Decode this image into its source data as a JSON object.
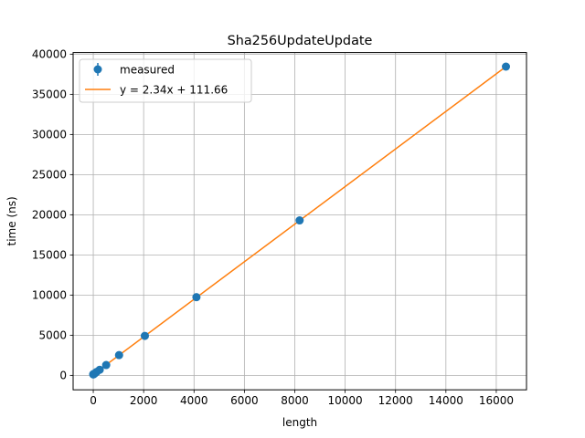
{
  "chart_data": {
    "type": "scatter",
    "title": "Sha256UpdateUpdate",
    "xlabel": "length",
    "ylabel": "time (ns)",
    "xlim": [
      -800,
      17200
    ],
    "ylim": [
      -1800,
      40200
    ],
    "xticks": [
      0,
      2000,
      4000,
      6000,
      8000,
      10000,
      12000,
      14000,
      16000
    ],
    "yticks": [
      0,
      5000,
      10000,
      15000,
      20000,
      25000,
      30000,
      35000,
      40000
    ],
    "grid": true,
    "legend_position": "top-left",
    "series": [
      {
        "name": "measured",
        "kind": "points",
        "color": "#1f77b4",
        "x": [
          1,
          2,
          4,
          8,
          16,
          32,
          64,
          128,
          256,
          512,
          1024,
          2048,
          4096,
          8192,
          16384
        ],
        "y": [
          120,
          130,
          140,
          150,
          160,
          180,
          260,
          420,
          700,
          1290,
          2520,
          4920,
          9740,
          19300,
          38450
        ]
      },
      {
        "name": "y = 2.34x + 111.66",
        "kind": "line",
        "color": "#ff7f0e",
        "slope": 2.34,
        "intercept": 111.66,
        "x_range": [
          1,
          16384
        ]
      }
    ]
  }
}
